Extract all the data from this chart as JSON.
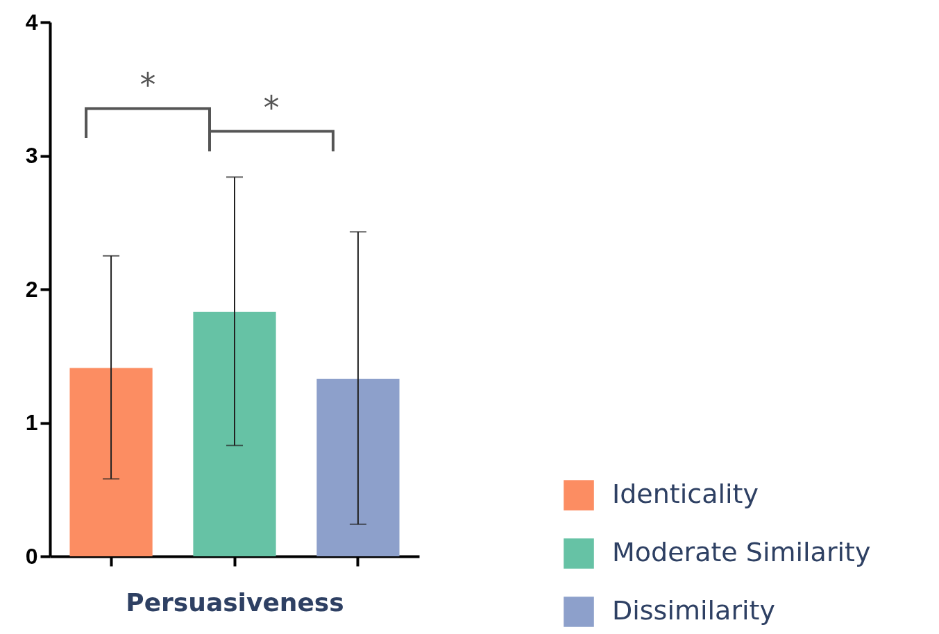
{
  "chart_data": {
    "type": "bar",
    "categories": [
      null,
      null,
      null
    ],
    "xlabel": "Persuasiveness",
    "series": [
      {
        "name": "Identicality",
        "color": "#fc8d62",
        "values": [
          1.41,
          null,
          null
        ],
        "errors": [
          [
            0.58,
            2.25
          ],
          null,
          null
        ]
      },
      {
        "name": "Moderate Similarity",
        "color": "#66c2a5",
        "values": [
          null,
          1.83,
          null
        ],
        "errors": [
          null,
          [
            0.83,
            2.84
          ],
          null
        ]
      },
      {
        "name": "Dissimilarity",
        "color": "#8da0cb",
        "values": [
          null,
          null,
          1.33
        ],
        "errors": [
          null,
          null,
          [
            0.24,
            2.43
          ]
        ]
      }
    ],
    "stacked": true,
    "ylim": [
      0,
      4
    ],
    "yticks": [
      0,
      1,
      2,
      3,
      4
    ],
    "grid": false,
    "legend": "bottom right",
    "annotations": [
      "*",
      "*"
    ]
  }
}
